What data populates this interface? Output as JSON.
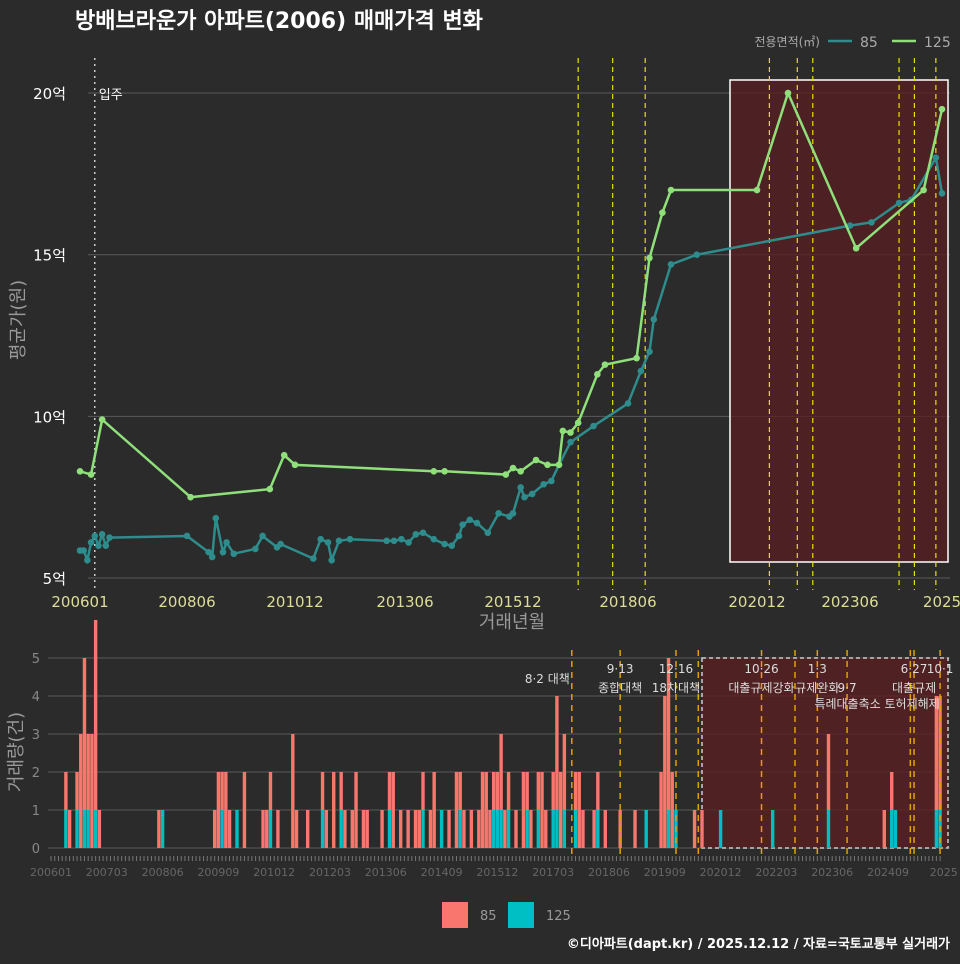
{
  "colors": {
    "bg": "#2b2b2b",
    "s85": "#2e8c8c",
    "s125": "#8fe07a",
    "bar85": "#f8766d",
    "bar125": "#00bfc4",
    "policy_top": "#e8e000",
    "policy_bottom": "#e0a000",
    "highlight": "#5a1f22"
  },
  "chart_data": [
    {
      "type": "line",
      "title": "방배브라운가 아파트(2006) 매매가격 변화",
      "xlabel": "거래년월",
      "ylabel": "평균가(원)",
      "legend_title": "전용면적(㎡)",
      "legend_position": "top-right",
      "ylim": [
        5,
        20.5
      ],
      "yticks": [
        {
          "v": 5,
          "label": "5억"
        },
        {
          "v": 10,
          "label": "10억"
        },
        {
          "v": 15,
          "label": "15억"
        },
        {
          "v": 20,
          "label": "20억"
        }
      ],
      "xticks": [
        "200601",
        "200806",
        "201012",
        "201306",
        "201512",
        "201806",
        "202012",
        "202306",
        "202512"
      ],
      "xtick_labels": [
        "200601",
        "200806",
        "201012",
        "201306",
        "201512",
        "201806",
        "202012",
        "202306",
        "2025"
      ],
      "move_in": {
        "date": "200605",
        "label": "입주"
      },
      "series": [
        {
          "name": "85",
          "points": [
            [
              "200601",
              5.85
            ],
            [
              "200602",
              5.85
            ],
            [
              "200603",
              5.55
            ],
            [
              "200604",
              6.1
            ],
            [
              "200605",
              6.3
            ],
            [
              "200606",
              6.0
            ],
            [
              "200607",
              6.35
            ],
            [
              "200608",
              6.0
            ],
            [
              "200609",
              6.25
            ],
            [
              "200806",
              6.3
            ],
            [
              "200812",
              5.8
            ],
            [
              "200901",
              5.65
            ],
            [
              "200902",
              6.85
            ],
            [
              "200904",
              5.8
            ],
            [
              "200905",
              6.1
            ],
            [
              "200907",
              5.75
            ],
            [
              "201001",
              5.9
            ],
            [
              "201003",
              6.3
            ],
            [
              "201007",
              5.95
            ],
            [
              "201008",
              6.05
            ],
            [
              "201105",
              5.6
            ],
            [
              "201107",
              6.2
            ],
            [
              "201109",
              6.1
            ],
            [
              "201110",
              5.55
            ],
            [
              "201112",
              6.15
            ],
            [
              "201203",
              6.2
            ],
            [
              "201301",
              6.15
            ],
            [
              "201303",
              6.15
            ],
            [
              "201305",
              6.2
            ],
            [
              "201307",
              6.1
            ],
            [
              "201309",
              6.35
            ],
            [
              "201311",
              6.4
            ],
            [
              "201402",
              6.2
            ],
            [
              "201405",
              6.05
            ],
            [
              "201407",
              6.0
            ],
            [
              "201409",
              6.3
            ],
            [
              "201410",
              6.65
            ],
            [
              "201412",
              6.8
            ],
            [
              "201502",
              6.7
            ],
            [
              "201505",
              6.4
            ],
            [
              "201508",
              7.0
            ],
            [
              "201511",
              6.9
            ],
            [
              "201512",
              7.0
            ],
            [
              "201602",
              7.8
            ],
            [
              "201603",
              7.5
            ],
            [
              "201605",
              7.6
            ],
            [
              "201608",
              7.9
            ],
            [
              "201610",
              8.0
            ],
            [
              "201612",
              8.5
            ],
            [
              "201703",
              9.2
            ],
            [
              "201709",
              9.7
            ],
            [
              "201806",
              10.4
            ],
            [
              "201809",
              11.4
            ],
            [
              "201811",
              12.0
            ],
            [
              "201812",
              13.0
            ],
            [
              "201904",
              14.7
            ],
            [
              "201910",
              15.0
            ],
            [
              "202306",
              15.9
            ],
            [
              "202401",
              16.0
            ],
            [
              "202410",
              16.6
            ],
            [
              "202502",
              16.7
            ],
            [
              "202510",
              18.0
            ],
            [
              "202512",
              16.9
            ]
          ]
        },
        {
          "name": "125",
          "points": [
            [
              "200601",
              8.3
            ],
            [
              "200604",
              8.2
            ],
            [
              "200607",
              9.9
            ],
            [
              "200807",
              7.5
            ],
            [
              "201005",
              7.75
            ],
            [
              "201009",
              8.8
            ],
            [
              "201012",
              8.5
            ],
            [
              "201402",
              8.3
            ],
            [
              "201405",
              8.3
            ],
            [
              "201510",
              8.2
            ],
            [
              "201512",
              8.4
            ],
            [
              "201602",
              8.3
            ],
            [
              "201606",
              8.65
            ],
            [
              "201609",
              8.5
            ],
            [
              "201612",
              8.5
            ],
            [
              "201701",
              9.55
            ],
            [
              "201703",
              9.5
            ],
            [
              "201705",
              9.8
            ],
            [
              "201710",
              11.3
            ],
            [
              "201712",
              11.6
            ],
            [
              "201808",
              11.8
            ],
            [
              "201811",
              14.9
            ],
            [
              "201902",
              16.3
            ],
            [
              "201904",
              17.0
            ],
            [
              "202012",
              17.0
            ],
            [
              "202110",
              20.0
            ],
            [
              "202308",
              15.2
            ],
            [
              "202506",
              17.0
            ],
            [
              "202512",
              19.5
            ]
          ]
        }
      ],
      "policy_dates": [
        "201705",
        "201802",
        "201810",
        "202104",
        "202201",
        "202206",
        "202410",
        "202503",
        "202510"
      ],
      "highlight_range": [
        "201910",
        "202512"
      ]
    },
    {
      "type": "bar",
      "ylabel": "거래량(건)",
      "ylim": [
        0,
        5
      ],
      "yticks": [
        0,
        1,
        2,
        3,
        4,
        5
      ],
      "xtick_labels": [
        "200601",
        "200703",
        "200806",
        "200909",
        "201012",
        "201203",
        "201306",
        "201409",
        "201512",
        "201703",
        "201806",
        "201909",
        "202012",
        "202203",
        "202306",
        "202409",
        "2025"
      ],
      "legend": [
        "85",
        "125"
      ],
      "legend_position": "bottom",
      "bars": [
        [
          "200605",
          1,
          1
        ],
        [
          "200606",
          1,
          0
        ],
        [
          "200608",
          1,
          1
        ],
        [
          "200609",
          3,
          0
        ],
        [
          "200610",
          4,
          1
        ],
        [
          "200611",
          2,
          1
        ],
        [
          "200612",
          3,
          0
        ],
        [
          "200701",
          5,
          1
        ],
        [
          "200702",
          1,
          0
        ],
        [
          "200806",
          1,
          0
        ],
        [
          "200807",
          0,
          1
        ],
        [
          "200909",
          1,
          0
        ],
        [
          "200910",
          2,
          0
        ],
        [
          "200911",
          1,
          1
        ],
        [
          "200912",
          2,
          0
        ],
        [
          "201001",
          1,
          0
        ],
        [
          "201003",
          0,
          1
        ],
        [
          "201005",
          2,
          0
        ],
        [
          "201010",
          1,
          0
        ],
        [
          "201011",
          1,
          0
        ],
        [
          "201012",
          1,
          1
        ],
        [
          "201102",
          1,
          0
        ],
        [
          "201106",
          3,
          0
        ],
        [
          "201107",
          1,
          0
        ],
        [
          "201110",
          1,
          0
        ],
        [
          "201202",
          1,
          1
        ],
        [
          "201203",
          1,
          0
        ],
        [
          "201205",
          2,
          0
        ],
        [
          "201207",
          1,
          1
        ],
        [
          "201208",
          1,
          0
        ],
        [
          "201210",
          1,
          0
        ],
        [
          "201211",
          2,
          0
        ],
        [
          "201301",
          1,
          0
        ],
        [
          "201302",
          1,
          0
        ],
        [
          "201306",
          1,
          0
        ],
        [
          "201308",
          1,
          1
        ],
        [
          "201309",
          2,
          0
        ],
        [
          "201311",
          1,
          0
        ],
        [
          "201401",
          1,
          0
        ],
        [
          "201403",
          1,
          0
        ],
        [
          "201404",
          1,
          0
        ],
        [
          "201405",
          1,
          1
        ],
        [
          "201407",
          1,
          0
        ],
        [
          "201408",
          2,
          0
        ],
        [
          "201410",
          0,
          1
        ],
        [
          "201412",
          1,
          0
        ],
        [
          "201502",
          2,
          0
        ],
        [
          "201503",
          1,
          1
        ],
        [
          "201504",
          1,
          0
        ],
        [
          "201506",
          1,
          0
        ],
        [
          "201508",
          1,
          0
        ],
        [
          "201509",
          2,
          0
        ],
        [
          "201510",
          2,
          0
        ],
        [
          "201511",
          1,
          0
        ],
        [
          "201512",
          1,
          1
        ],
        [
          "201601",
          1,
          1
        ],
        [
          "201602",
          2,
          1
        ],
        [
          "201603",
          1,
          0
        ],
        [
          "201604",
          1,
          1
        ],
        [
          "201606",
          1,
          0
        ],
        [
          "201608",
          2,
          0
        ],
        [
          "201609",
          1,
          1
        ],
        [
          "201610",
          1,
          0
        ],
        [
          "201612",
          1,
          1
        ],
        [
          "201701",
          2,
          0
        ],
        [
          "201702",
          1,
          0
        ],
        [
          "201704",
          1,
          1
        ],
        [
          "201705",
          3,
          1
        ],
        [
          "201706",
          2,
          0
        ],
        [
          "201707",
          2,
          1
        ],
        [
          "201710",
          1,
          1
        ],
        [
          "201711",
          2,
          0
        ],
        [
          "201712",
          1,
          0
        ],
        [
          "201803",
          1,
          0
        ],
        [
          "201804",
          1,
          1
        ],
        [
          "201806",
          1,
          0
        ],
        [
          "201810",
          1,
          0
        ],
        [
          "201902",
          1,
          0
        ],
        [
          "201905",
          0,
          1
        ],
        [
          "201909",
          2,
          0
        ],
        [
          "201910",
          4,
          0
        ],
        [
          "201911",
          4,
          1
        ],
        [
          "201912",
          2,
          0
        ],
        [
          "202001",
          0,
          1
        ],
        [
          "202006",
          1,
          0
        ],
        [
          "202008",
          1,
          0
        ],
        [
          "202101",
          0,
          1
        ],
        [
          "202203",
          0,
          1
        ],
        [
          "202306",
          2,
          1
        ],
        [
          "202409",
          1,
          0
        ],
        [
          "202411",
          1,
          1
        ],
        [
          "202412",
          0,
          1
        ],
        [
          "202511",
          3,
          1
        ],
        [
          "202512",
          3,
          1
        ]
      ],
      "policy_dates": [
        "201709",
        "201810",
        "202001",
        "202007",
        "202112",
        "202209",
        "202303",
        "202311",
        "202504",
        "202505",
        "202512"
      ],
      "annotations": [
        {
          "date": "201709",
          "line1": "",
          "line2": "8·2 대책"
        },
        {
          "date": "201810",
          "line1": "9·13",
          "line2": "종합대책"
        },
        {
          "date": "202001",
          "line1": "12·16",
          "line2": "18차대책"
        },
        {
          "date": "202112",
          "line1": "10·26",
          "line2": "대출규제강화"
        },
        {
          "date": "202303",
          "line1": "1·3",
          "line2": "규제완화"
        },
        {
          "date": "202311",
          "line1": "",
          "line2": "9·7"
        },
        {
          "date": "202311",
          "line1": "",
          "line2": "",
          "line3": "특례대출축소 토허제해제"
        },
        {
          "date": "202505",
          "line1": "6·27",
          "line2": "대출규제"
        },
        {
          "date": "202512",
          "line1": "10·1",
          "line2": ""
        }
      ],
      "highlight_range": [
        "202008",
        "202512"
      ]
    }
  ],
  "footer": "©디아파트(dapt.kr) / 2025.12.12 / 자료=국토교통부 실거래가"
}
